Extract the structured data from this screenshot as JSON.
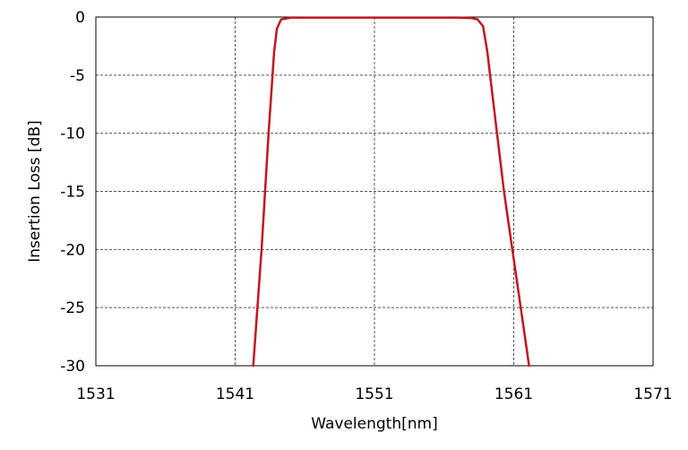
{
  "chart_data": {
    "type": "line",
    "xlabel": "Wavelength[nm]",
    "ylabel": "Insertion Loss [dB]",
    "xlim": [
      1531,
      1571
    ],
    "ylim": [
      -30,
      0
    ],
    "x_ticks": [
      1531,
      1541,
      1551,
      1561,
      1571
    ],
    "y_ticks": [
      0,
      -5,
      -10,
      -15,
      -20,
      -25,
      -30
    ],
    "x_tick_labels": [
      "1531",
      "1541",
      "1551",
      "1561",
      "1571"
    ],
    "y_tick_labels": [
      "0",
      "-5",
      "-10",
      "-15",
      "-20",
      "-25",
      "-30"
    ],
    "grid": true,
    "grid_style": "dashed",
    "series": [
      {
        "color": "#c0161e",
        "x": [
          1542.3,
          1542.9,
          1543.4,
          1543.8,
          1544.0,
          1544.3,
          1545.0,
          1551.0,
          1557.0,
          1558.0,
          1558.4,
          1558.8,
          1559.1,
          1559.4,
          1559.8,
          1560.3,
          1560.9,
          1561.5,
          1562.1
        ],
        "y": [
          -30,
          -20,
          -10,
          -3,
          -1,
          -0.2,
          -0.05,
          -0.05,
          -0.05,
          -0.1,
          -0.2,
          -0.8,
          -3,
          -6,
          -10,
          -15,
          -20,
          -25,
          -30
        ]
      }
    ]
  }
}
